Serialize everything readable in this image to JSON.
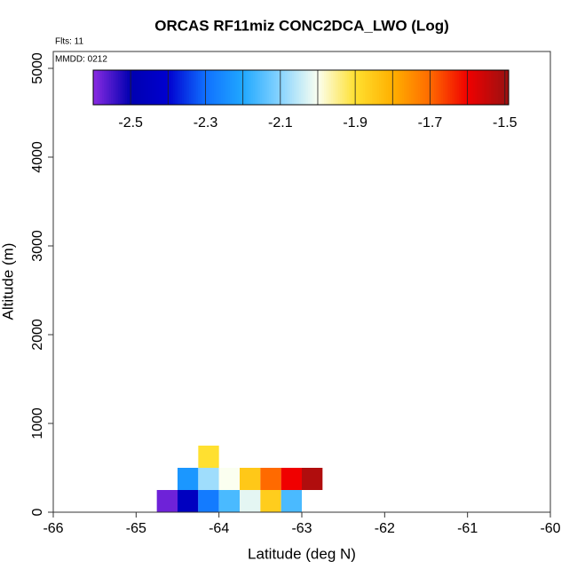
{
  "chart_data": {
    "type": "heatmap",
    "title": "ORCAS RF11miz CONC2DCA_LWO (Log)",
    "annotations": [
      "Flts: 11",
      "MMDD: 0212"
    ],
    "x_label": "Latitude (deg N)",
    "y_label": "Altitude (m)",
    "xlim": [
      -66,
      -60
    ],
    "ylim": [
      0,
      5190
    ],
    "xticks": [
      -66,
      -65,
      -64,
      -63,
      -62,
      -61,
      -60
    ],
    "yticks": [
      0,
      1000,
      2000,
      3000,
      4000,
      5000
    ],
    "colorbar": {
      "lim": [
        -2.6,
        -1.49
      ],
      "ticks": [
        -2.5,
        -2.3,
        -2.1,
        -1.9,
        -1.7,
        -1.5
      ],
      "stops": [
        -2.6,
        -2.5,
        -2.4,
        -2.3,
        -2.2,
        -2.1,
        -2.0,
        -1.9,
        -1.8,
        -1.7,
        -1.6,
        -1.5
      ],
      "colors": [
        "#8a2be2",
        "#0000b0",
        "#0000d0",
        "#1070ff",
        "#20a8ff",
        "#88d4ff",
        "#fbfff0",
        "#ffe030",
        "#ffb000",
        "#ff6a00",
        "#f00000",
        "#a01010"
      ]
    },
    "cells": [
      {
        "x": -64.75,
        "y": 0,
        "value": -2.58
      },
      {
        "x": -64.5,
        "y": 0,
        "value": -2.45
      },
      {
        "x": -64.25,
        "y": 0,
        "value": -2.28
      },
      {
        "x": -64.0,
        "y": 0,
        "value": -2.16
      },
      {
        "x": -63.75,
        "y": 0,
        "value": -2.02
      },
      {
        "x": -63.5,
        "y": 0,
        "value": -1.86
      },
      {
        "x": -63.25,
        "y": 0,
        "value": -2.16
      },
      {
        "x": -64.5,
        "y": 250,
        "value": -2.23
      },
      {
        "x": -64.25,
        "y": 250,
        "value": -2.08
      },
      {
        "x": -64.0,
        "y": 250,
        "value": -2.0
      },
      {
        "x": -63.75,
        "y": 250,
        "value": -1.85
      },
      {
        "x": -63.5,
        "y": 250,
        "value": -1.7
      },
      {
        "x": -63.25,
        "y": 250,
        "value": -1.6
      },
      {
        "x": -63.0,
        "y": 250,
        "value": -1.52
      },
      {
        "x": -64.25,
        "y": 500,
        "value": -1.9
      }
    ]
  }
}
